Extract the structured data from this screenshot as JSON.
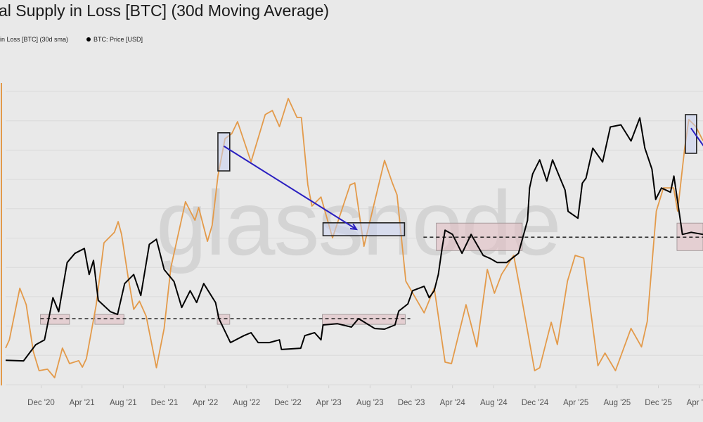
{
  "header": {
    "title": "al Supply in Loss [BTC] (30d Moving Average)",
    "legend": [
      {
        "label": "in Loss [BTC] (30d sma)",
        "color": "#e39a4a"
      },
      {
        "label": "BTC: Price [USD]",
        "color": "#000000",
        "marker": "dot"
      }
    ]
  },
  "watermark": "glassnode",
  "chart_data": {
    "type": "line",
    "title": "al Supply in Loss [BTC] (30d Moving Average)",
    "xlabel": "",
    "xlim": [
      "2020-08-18",
      "2026-04-12"
    ],
    "x_ticks": [
      "Dec '20",
      "Apr '21",
      "Aug '21",
      "Dec '21",
      "Apr '22",
      "Aug '22",
      "Dec '22",
      "Apr '23",
      "Aug '23",
      "Dec '23",
      "Apr '24",
      "Aug '24",
      "Dec '24",
      "Apr '25",
      "Aug '25",
      "Dec '25",
      "Apr '26"
    ],
    "x_tick_dates": [
      "2020-12-01",
      "2021-04-01",
      "2021-08-01",
      "2021-12-01",
      "2022-04-01",
      "2022-08-01",
      "2022-12-01",
      "2023-04-01",
      "2023-08-01",
      "2023-12-01",
      "2024-04-01",
      "2024-08-01",
      "2024-12-01",
      "2025-04-01",
      "2025-08-01",
      "2025-12-01",
      "2026-04-01"
    ],
    "grid": "horizontal",
    "legend_position": "top-left",
    "series": [
      {
        "name": "in Loss [BTC] (30d sma)",
        "axis": "left",
        "unit": "million BTC",
        "ylim": [
          0,
          10
        ],
        "color": "#e39a4a",
        "points": [
          [
            "2020-08-18",
            1.25
          ],
          [
            "2020-08-29",
            1.53
          ],
          [
            "2020-09-29",
            3.29
          ],
          [
            "2020-10-18",
            2.73
          ],
          [
            "2020-11-08",
            1.13
          ],
          [
            "2020-11-25",
            0.48
          ],
          [
            "2020-12-20",
            0.53
          ],
          [
            "2021-01-10",
            0.24
          ],
          [
            "2021-02-02",
            1.25
          ],
          [
            "2021-02-23",
            0.72
          ],
          [
            "2021-03-22",
            0.82
          ],
          [
            "2021-04-02",
            0.6
          ],
          [
            "2021-04-14",
            0.89
          ],
          [
            "2021-05-13",
            2.73
          ],
          [
            "2021-06-05",
            4.84
          ],
          [
            "2021-07-06",
            5.2
          ],
          [
            "2021-07-17",
            5.56
          ],
          [
            "2021-07-27",
            5.13
          ],
          [
            "2021-08-15",
            3.69
          ],
          [
            "2021-09-01",
            2.57
          ],
          [
            "2021-09-18",
            2.85
          ],
          [
            "2021-10-08",
            2.33
          ],
          [
            "2021-11-07",
            0.58
          ],
          [
            "2021-11-30",
            1.92
          ],
          [
            "2021-12-20",
            4.0
          ],
          [
            "2022-02-01",
            6.24
          ],
          [
            "2022-03-01",
            5.61
          ],
          [
            "2022-03-12",
            6.04
          ],
          [
            "2022-04-07",
            4.89
          ],
          [
            "2022-04-21",
            5.44
          ],
          [
            "2022-05-08",
            7.12
          ],
          [
            "2022-05-29",
            8.39
          ],
          [
            "2022-06-18",
            8.56
          ],
          [
            "2022-07-05",
            8.97
          ],
          [
            "2022-08-14",
            7.6
          ],
          [
            "2022-09-25",
            9.21
          ],
          [
            "2022-10-16",
            9.35
          ],
          [
            "2022-11-06",
            8.8
          ],
          [
            "2022-12-02",
            9.76
          ],
          [
            "2022-12-28",
            9.11
          ],
          [
            "2023-01-10",
            9.11
          ],
          [
            "2023-01-29",
            6.81
          ],
          [
            "2023-02-10",
            6.09
          ],
          [
            "2023-03-09",
            6.4
          ],
          [
            "2023-04-12",
            5.01
          ],
          [
            "2023-06-03",
            6.81
          ],
          [
            "2023-06-17",
            6.88
          ],
          [
            "2023-07-14",
            4.72
          ],
          [
            "2023-09-13",
            7.65
          ],
          [
            "2023-10-06",
            6.88
          ],
          [
            "2023-10-20",
            6.47
          ],
          [
            "2023-11-15",
            3.53
          ],
          [
            "2024-01-08",
            2.45
          ],
          [
            "2024-02-07",
            3.29
          ],
          [
            "2024-03-10",
            0.77
          ],
          [
            "2024-03-29",
            0.72
          ],
          [
            "2024-05-11",
            2.73
          ],
          [
            "2024-06-12",
            1.29
          ],
          [
            "2024-07-13",
            3.93
          ],
          [
            "2024-08-03",
            3.12
          ],
          [
            "2024-08-24",
            3.76
          ],
          [
            "2024-09-29",
            4.41
          ],
          [
            "2024-10-20",
            3.12
          ],
          [
            "2024-11-30",
            0.48
          ],
          [
            "2024-12-15",
            0.58
          ],
          [
            "2025-01-18",
            2.13
          ],
          [
            "2025-02-05",
            1.37
          ],
          [
            "2025-03-07",
            3.53
          ],
          [
            "2025-03-30",
            4.41
          ],
          [
            "2025-04-24",
            4.32
          ],
          [
            "2025-06-05",
            0.65
          ],
          [
            "2025-06-26",
            1.08
          ],
          [
            "2025-07-27",
            0.48
          ],
          [
            "2025-09-11",
            1.92
          ],
          [
            "2025-10-12",
            1.29
          ],
          [
            "2025-10-29",
            2.16
          ],
          [
            "2025-11-25",
            5.92
          ],
          [
            "2025-12-16",
            6.71
          ],
          [
            "2026-01-15",
            6.71
          ],
          [
            "2026-01-27",
            5.92
          ],
          [
            "2026-02-17",
            8.08
          ],
          [
            "2026-03-01",
            9.04
          ],
          [
            "2026-03-22",
            8.8
          ],
          [
            "2026-04-12",
            8.32
          ]
        ]
      },
      {
        "name": "BTC: Price [USD]",
        "axis": "right",
        "unit": "USD",
        "ylim": [
          0,
          139000
        ],
        "color": "#000000",
        "points": [
          [
            "2020-08-18",
            11000
          ],
          [
            "2020-10-10",
            10700
          ],
          [
            "2020-11-15",
            18400
          ],
          [
            "2020-12-11",
            20700
          ],
          [
            "2021-01-05",
            40800
          ],
          [
            "2021-01-22",
            34100
          ],
          [
            "2021-02-16",
            57500
          ],
          [
            "2021-03-11",
            61900
          ],
          [
            "2021-04-08",
            64200
          ],
          [
            "2021-04-22",
            51800
          ],
          [
            "2021-05-05",
            58500
          ],
          [
            "2021-05-19",
            39500
          ],
          [
            "2021-06-24",
            34100
          ],
          [
            "2021-07-15",
            32800
          ],
          [
            "2021-08-05",
            47500
          ],
          [
            "2021-09-01",
            51800
          ],
          [
            "2021-09-22",
            41800
          ],
          [
            "2021-10-17",
            66200
          ],
          [
            "2021-11-07",
            68600
          ],
          [
            "2021-11-30",
            54200
          ],
          [
            "2021-12-29",
            48500
          ],
          [
            "2022-01-21",
            36100
          ],
          [
            "2022-02-15",
            44100
          ],
          [
            "2022-03-06",
            38500
          ],
          [
            "2022-03-27",
            47500
          ],
          [
            "2022-05-01",
            38500
          ],
          [
            "2022-05-11",
            30800
          ],
          [
            "2022-06-14",
            19400
          ],
          [
            "2022-07-24",
            22700
          ],
          [
            "2022-08-14",
            24100
          ],
          [
            "2022-09-04",
            19400
          ],
          [
            "2022-10-07",
            19400
          ],
          [
            "2022-11-06",
            20700
          ],
          [
            "2022-11-12",
            16100
          ],
          [
            "2023-01-08",
            16700
          ],
          [
            "2023-01-20",
            22700
          ],
          [
            "2023-02-18",
            24100
          ],
          [
            "2023-03-09",
            20700
          ],
          [
            "2023-03-15",
            27800
          ],
          [
            "2023-04-26",
            28400
          ],
          [
            "2023-06-07",
            26800
          ],
          [
            "2023-06-28",
            30800
          ],
          [
            "2023-08-15",
            26100
          ],
          [
            "2023-09-13",
            25800
          ],
          [
            "2023-10-14",
            27800
          ],
          [
            "2023-10-25",
            34400
          ],
          [
            "2023-11-21",
            37800
          ],
          [
            "2023-12-05",
            44100
          ],
          [
            "2024-01-08",
            46200
          ],
          [
            "2024-01-23",
            40800
          ],
          [
            "2024-02-07",
            44100
          ],
          [
            "2024-02-19",
            51800
          ],
          [
            "2024-03-01",
            64200
          ],
          [
            "2024-03-10",
            72900
          ],
          [
            "2024-04-01",
            70900
          ],
          [
            "2024-04-29",
            61900
          ],
          [
            "2024-05-26",
            70900
          ],
          [
            "2024-07-01",
            60900
          ],
          [
            "2024-07-21",
            59500
          ],
          [
            "2024-08-11",
            57500
          ],
          [
            "2024-09-08",
            57500
          ],
          [
            "2024-10-13",
            61900
          ],
          [
            "2024-11-09",
            77600
          ],
          [
            "2024-11-15",
            93000
          ],
          [
            "2024-11-24",
            99700
          ],
          [
            "2024-12-15",
            106400
          ],
          [
            "2025-01-05",
            96300
          ],
          [
            "2025-01-22",
            106400
          ],
          [
            "2025-02-08",
            99700
          ],
          [
            "2025-02-28",
            92000
          ],
          [
            "2025-03-09",
            81900
          ],
          [
            "2025-04-07",
            78600
          ],
          [
            "2025-04-20",
            95300
          ],
          [
            "2025-05-01",
            97700
          ],
          [
            "2025-05-21",
            112000
          ],
          [
            "2025-06-19",
            105400
          ],
          [
            "2025-07-12",
            122100
          ],
          [
            "2025-08-12",
            123100
          ],
          [
            "2025-09-11",
            115400
          ],
          [
            "2025-10-07",
            126400
          ],
          [
            "2025-10-22",
            112000
          ],
          [
            "2025-11-12",
            102000
          ],
          [
            "2025-11-23",
            87600
          ],
          [
            "2025-12-10",
            93000
          ],
          [
            "2026-01-06",
            91000
          ],
          [
            "2026-01-16",
            98700
          ],
          [
            "2026-02-04",
            77600
          ],
          [
            "2026-02-10",
            70900
          ],
          [
            "2026-03-08",
            71900
          ],
          [
            "2026-04-12",
            70900
          ]
        ]
      }
    ],
    "annotations": {
      "dashed_levels": [
        {
          "price": 30800,
          "from": "2020-11-29",
          "to": "2023-11-28"
        },
        {
          "price": 69600,
          "from": "2024-01-06",
          "to": "2026-04-12"
        }
      ],
      "price_zones": [
        {
          "from": "2020-11-29",
          "to": "2021-02-23",
          "low": 28100,
          "high": 32800
        },
        {
          "from": "2021-05-09",
          "to": "2021-08-03",
          "low": 28100,
          "high": 32800
        },
        {
          "from": "2022-05-06",
          "to": "2022-06-12",
          "low": 28100,
          "high": 32800
        },
        {
          "from": "2023-03-13",
          "to": "2023-11-13",
          "low": 28100,
          "high": 32800
        },
        {
          "from": "2024-02-13",
          "to": "2024-10-24",
          "low": 63200,
          "high": 76300
        },
        {
          "from": "2026-01-25",
          "to": "2026-04-12",
          "low": 63200,
          "high": 76300
        }
      ],
      "supply_boxes": [
        {
          "from": "2022-05-08",
          "to": "2022-06-12",
          "low": 7.29,
          "high": 8.59
        },
        {
          "from": "2023-03-15",
          "to": "2023-11-11",
          "low": 5.08,
          "high": 5.52
        },
        {
          "from": "2026-02-19",
          "to": "2026-03-24",
          "low": 7.89,
          "high": 9.21
        }
      ],
      "arrow_color": "#2a1fc0"
    }
  }
}
